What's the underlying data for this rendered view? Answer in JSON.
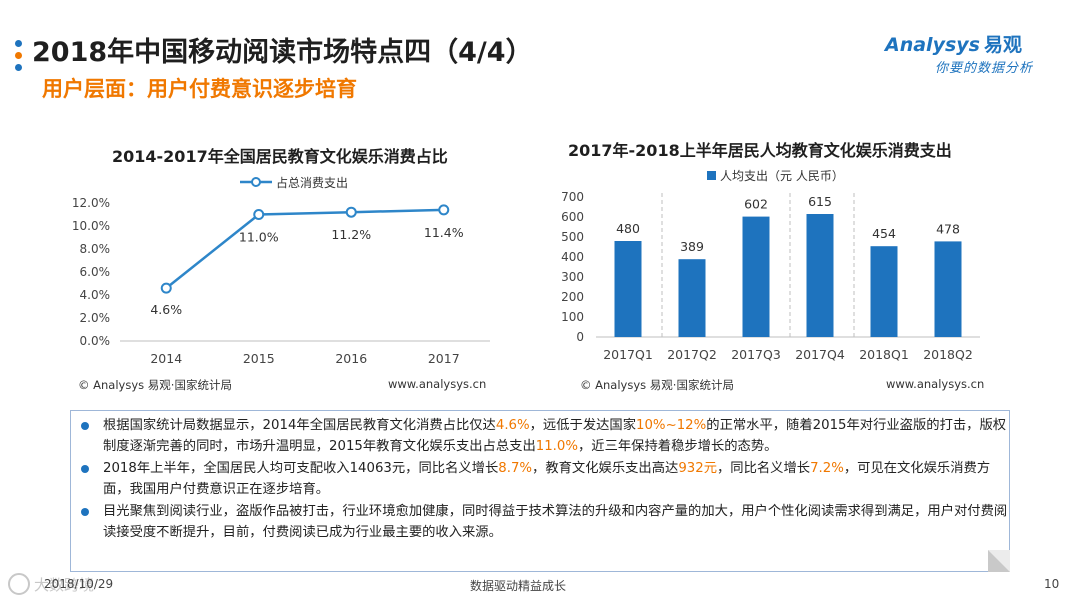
{
  "header": {
    "title": "2018年中国移动阅读市场特点四（4/4）",
    "subtitle": "用户层面：用户付费意识逐步培育",
    "dot_colors": [
      "#1e73be",
      "#f07800",
      "#1e73be"
    ]
  },
  "logo": {
    "brand": "Analysys",
    "brand_cn": "易观",
    "tagline": "你要的数据分析",
    "color": "#1e73be"
  },
  "chart_data": [
    {
      "type": "line",
      "title": "2014-2017年全国居民教育文化娱乐消费占比",
      "categories": [
        "2014",
        "2015",
        "2016",
        "2017"
      ],
      "series": [
        {
          "name": "占总消费支出",
          "values": [
            4.6,
            11.0,
            11.2,
            11.4
          ]
        }
      ],
      "data_labels": [
        "4.6%",
        "11.0%",
        "11.2%",
        "11.4%"
      ],
      "y_ticks": [
        "0.0%",
        "2.0%",
        "4.0%",
        "6.0%",
        "8.0%",
        "10.0%",
        "12.0%"
      ],
      "ylim": [
        0,
        12
      ],
      "legend_position": "top",
      "color": "#2e86c9",
      "source": "© Analysys 易观·国家统计局",
      "url": "www.analysys.cn"
    },
    {
      "type": "bar",
      "title": "2017年-2018上半年居民人均教育文化娱乐消费支出",
      "categories": [
        "2017Q1",
        "2017Q2",
        "2017Q3",
        "2017Q4",
        "2018Q1",
        "2018Q2"
      ],
      "series": [
        {
          "name": "人均支出（元 人民币）",
          "values": [
            480,
            389,
            602,
            615,
            454,
            478
          ]
        }
      ],
      "y_ticks": [
        "0",
        "100",
        "200",
        "300",
        "400",
        "500",
        "600",
        "700"
      ],
      "ylim": [
        0,
        700
      ],
      "legend_position": "top",
      "color": "#1e73be",
      "source": "© Analysys 易观·国家统计局",
      "url": "www.analysys.cn"
    }
  ],
  "summary": {
    "p1": {
      "a": "根据国家统计局数据显示，2014年全国居民教育文化消费占比仅达",
      "h1": "4.6%",
      "b": "，远低于发达国家",
      "h2": "10%~12%",
      "c": "的正常水平，随着2015年对行业盗版的打击，版权制度逐渐完善的同时，市场升温明显，2015年教育文化娱乐支出占总支出",
      "h3": "11.0%",
      "d": "，近三年保持着稳步增长的态势。"
    },
    "p2": {
      "a": "2018年上半年，全国居民人均可支配收入14063元，同比名义增长",
      "h1": "8.7%",
      "b": "，教育文化娱乐支出高达",
      "h2": "932元",
      "c": "，同比名义增长",
      "h3": "7.2%",
      "d": "，可见在文化娱乐消费方面，我国用户付费意识正在逐步培育。"
    },
    "p3": "目光聚焦到阅读行业，盗版作品被打击，行业环境愈加健康，同时得益于技术算法的升级和内容产量的加大，用户个性化阅读需求得到满足，用户对付费阅读接受度不断提升，目前，付费阅读已成为行业最主要的收入来源。",
    "highlight_color": "#f07800"
  },
  "footer": {
    "date": "2018/10/29",
    "center": "数据驱动精益成长",
    "page": "10",
    "watermark": "大数跨境"
  }
}
